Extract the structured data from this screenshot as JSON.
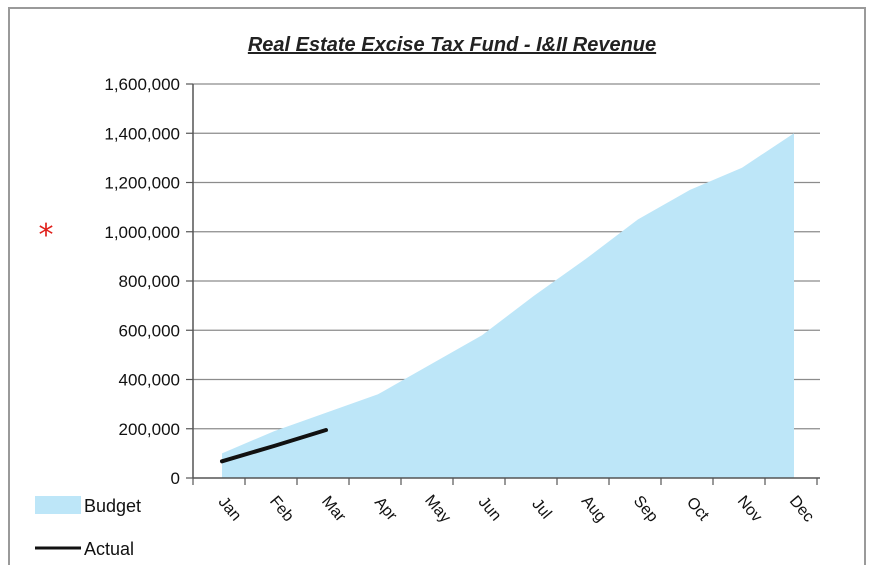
{
  "chart_data": {
    "type": "area",
    "title": "Real Estate Excise Tax Fund - I&II Revenue",
    "xlabel": "",
    "ylabel": "",
    "categories": [
      "Jan",
      "Feb",
      "Mar",
      "Apr",
      "May",
      "Jun",
      "Jul",
      "Aug",
      "Sep",
      "Oct",
      "Nov",
      "Dec"
    ],
    "ylim": [
      0,
      1600000
    ],
    "yticks": [
      0,
      200000,
      400000,
      600000,
      800000,
      1000000,
      1200000,
      1400000,
      1600000
    ],
    "ytick_labels": [
      "0",
      "200,000",
      "400,000",
      "600,000",
      "800,000",
      "1,000,000",
      "1,200,000",
      "1,400,000",
      "1,600,000"
    ],
    "grid": true,
    "legend_position": "bottom-left",
    "series": [
      {
        "name": "Budget",
        "type": "area",
        "color": "#bde6f8",
        "values": [
          100000,
          190000,
          265000,
          340000,
          460000,
          580000,
          740000,
          890000,
          1050000,
          1170000,
          1260000,
          1400000
        ]
      },
      {
        "name": "Actual",
        "type": "line",
        "color": "#111111",
        "values": [
          68000,
          130000,
          195000,
          null,
          null,
          null,
          null,
          null,
          null,
          null,
          null,
          null
        ]
      }
    ],
    "annotations": [
      "*"
    ],
    "annotation_color": "#e0201b"
  }
}
